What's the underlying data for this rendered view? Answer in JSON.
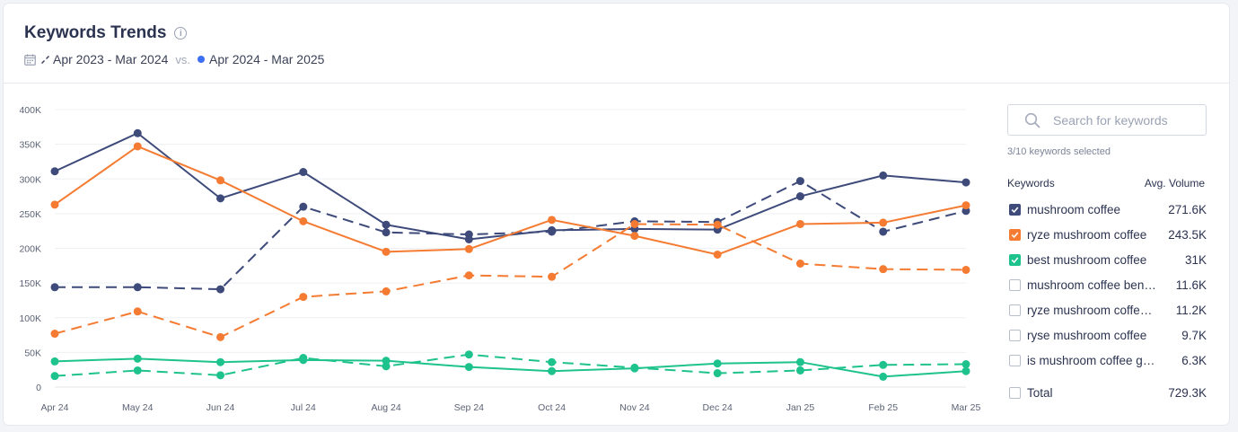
{
  "header": {
    "title": "Keywords Trends",
    "period_prev": "Apr 2023 - Mar 2024",
    "vs": "vs.",
    "period_curr": "Apr 2024 - Mar 2025"
  },
  "panel": {
    "search_placeholder": "Search for keywords",
    "selected_count": "3/10 keywords selected",
    "col_keywords": "Keywords",
    "col_volume": "Avg. Volume",
    "keywords": [
      {
        "name": "mushroom coffee",
        "volume": "271.6K",
        "checked": true,
        "color": "#3d4a7a"
      },
      {
        "name": "ryze mushroom coffee",
        "volume": "243.5K",
        "checked": true,
        "color": "#f47b31"
      },
      {
        "name": "best mushroom coffee",
        "volume": "31K",
        "checked": true,
        "color": "#1ec28c"
      },
      {
        "name": "mushroom coffee bene…",
        "volume": "11.6K",
        "checked": false,
        "color": ""
      },
      {
        "name": "ryze mushroom coffee …",
        "volume": "11.2K",
        "checked": false,
        "color": ""
      },
      {
        "name": "ryse mushroom coffee",
        "volume": "9.7K",
        "checked": false,
        "color": ""
      },
      {
        "name": "is mushroom coffee goo…",
        "volume": "6.3K",
        "checked": false,
        "color": ""
      }
    ],
    "total_label": "Total",
    "total_value": "729.3K"
  },
  "chart_data": {
    "type": "line",
    "categories": [
      "Apr 24",
      "May 24",
      "Jun 24",
      "Jul 24",
      "Aug 24",
      "Sep 24",
      "Oct 24",
      "Nov 24",
      "Dec 24",
      "Jan 25",
      "Feb 25",
      "Mar 25"
    ],
    "y_ticks": [
      "0",
      "50K",
      "100K",
      "150K",
      "200K",
      "250K",
      "300K",
      "350K",
      "400K"
    ],
    "ylim": [
      0,
      400000
    ],
    "grid": true,
    "series": [
      {
        "name": "mushroom coffee",
        "period": "Apr 2024 - Mar 2025",
        "style": "solid",
        "color": "#3d4a7a",
        "values": [
          311000,
          366000,
          272000,
          310000,
          234000,
          213000,
          226000,
          228000,
          227000,
          275000,
          305000,
          295000
        ]
      },
      {
        "name": "mushroom coffee",
        "period": "Apr 2023 - Mar 2024",
        "style": "dashed",
        "color": "#3d4a7a",
        "values": [
          144000,
          144000,
          141000,
          260000,
          223000,
          220000,
          224000,
          239000,
          238000,
          297000,
          224000,
          254000
        ]
      },
      {
        "name": "ryze mushroom coffee",
        "period": "Apr 2024 - Mar 2025",
        "style": "solid",
        "color": "#f47b31",
        "values": [
          263000,
          347000,
          298000,
          239000,
          195000,
          199000,
          241000,
          218000,
          191000,
          235000,
          237000,
          262000
        ]
      },
      {
        "name": "ryze mushroom coffee",
        "period": "Apr 2023 - Mar 2024",
        "style": "dashed",
        "color": "#f47b31",
        "values": [
          77000,
          109000,
          72000,
          130000,
          138000,
          161000,
          159000,
          235000,
          234000,
          178000,
          170000,
          169000
        ]
      },
      {
        "name": "best mushroom coffee",
        "period": "Apr 2024 - Mar 2025",
        "style": "solid",
        "color": "#1ec28c",
        "values": [
          37000,
          41000,
          36000,
          39000,
          38000,
          29000,
          23000,
          27000,
          34000,
          36000,
          15000,
          23000
        ]
      },
      {
        "name": "best mushroom coffee",
        "period": "Apr 2023 - Mar 2024",
        "style": "dashed",
        "color": "#1ec28c",
        "values": [
          16000,
          24000,
          17000,
          42000,
          30000,
          47000,
          36000,
          28000,
          20000,
          24000,
          32000,
          33000
        ]
      }
    ]
  }
}
